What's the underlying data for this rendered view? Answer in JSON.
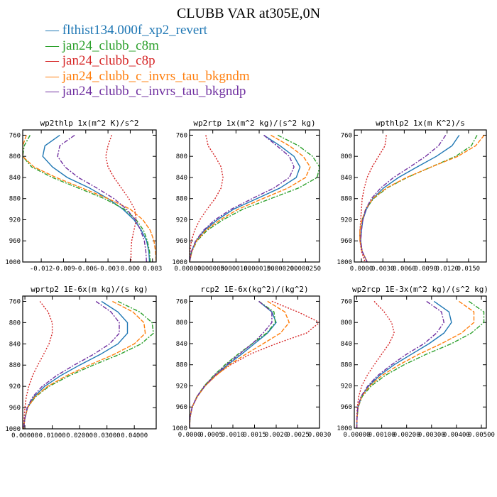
{
  "figure_title": "CLUBB VAR at305E,0N",
  "colors": [
    "#1f77b4",
    "#2ca02c",
    "#d62728",
    "#ff7f0e",
    "#7030a0"
  ],
  "legend": [
    {
      "label": "flthist134.000f_xp2_revert"
    },
    {
      "label": "jan24_clubb_c8m"
    },
    {
      "label": "jan24_clubb_c8p"
    },
    {
      "label": "jan24_clubb_c_invrs_tau_bkgndm"
    },
    {
      "label": "jan24_clubb_c_invrs_tau_bkgndp"
    }
  ],
  "chart_data": [
    {
      "type": "line",
      "title": "wp2thlp  1x(m^2 K)/s^2",
      "y": [
        760,
        780,
        800,
        820,
        840,
        860,
        880,
        900,
        920,
        940,
        960,
        980,
        1000
      ],
      "ylim": [
        1000,
        750
      ],
      "yticks": [
        760,
        800,
        840,
        880,
        920,
        960,
        1000
      ],
      "xlim": [
        -0.0145,
        0.0035
      ],
      "xticks": [
        -0.012,
        -0.009,
        -0.006,
        -0.003,
        0.0,
        0.003
      ],
      "xticklabels": [
        "-0.012",
        "-0.009",
        "-0.006",
        "-0.003",
        "0.000",
        "0.003"
      ],
      "series": [
        {
          "values": [
            -0.0095,
            -0.0115,
            -0.0118,
            -0.0105,
            -0.0085,
            -0.0055,
            -0.003,
            -0.001,
            0.0005,
            0.0015,
            0.0022,
            0.0025,
            0.0026
          ]
        },
        {
          "values": [
            -0.0135,
            -0.0143,
            -0.0145,
            -0.0133,
            -0.0105,
            -0.007,
            -0.0035,
            -0.0008,
            0.0008,
            0.0018,
            0.0023,
            0.0026,
            0.0027
          ]
        },
        {
          "values": [
            -0.0025,
            -0.003,
            -0.0033,
            -0.003,
            -0.0022,
            -0.0012,
            -0.0002,
            0.0006,
            0.0008,
            0.0005,
            0.0002,
            0.0001,
            0.0001
          ]
        },
        {
          "values": [
            -0.014,
            -0.0145,
            -0.0145,
            -0.013,
            -0.01,
            -0.0065,
            -0.003,
            0.0,
            0.0017,
            0.0027,
            0.0032,
            0.0034,
            0.0035
          ]
        },
        {
          "values": [
            -0.0075,
            -0.0095,
            -0.0098,
            -0.0088,
            -0.007,
            -0.0045,
            -0.0022,
            -0.0005,
            0.0007,
            0.0014,
            0.0019,
            0.0021,
            0.0022
          ]
        }
      ]
    },
    {
      "type": "line",
      "title": "wp2rtp  1x(m^2 kg)/(s^2 kg)",
      "y": [
        760,
        780,
        800,
        820,
        840,
        860,
        880,
        900,
        920,
        940,
        960,
        980,
        1000
      ],
      "ylim": [
        1000,
        750
      ],
      "yticks": [
        760,
        800,
        840,
        880,
        920,
        960,
        1000
      ],
      "xlim": [
        0,
        0.00028
      ],
      "xticks": [
        0,
        5e-05,
        0.0001,
        0.00015,
        0.0002,
        0.00025
      ],
      "xticklabels": [
        "0.000000",
        "0.000050",
        "0.000100",
        "0.000150",
        "0.000200",
        "0.000250"
      ],
      "series": [
        {
          "values": [
            0.00016,
            0.000195,
            0.000225,
            0.000238,
            0.00023,
            0.000195,
            0.000145,
            9.5e-05,
            6e-05,
            3.2e-05,
            1.4e-05,
            4e-06,
            0.0
          ]
        },
        {
          "values": [
            0.00019,
            0.000235,
            0.000265,
            0.00028,
            0.000275,
            0.000235,
            0.000175,
            0.000115,
            7.2e-05,
            3.8e-05,
            1.6e-05,
            5e-06,
            0.0
          ]
        },
        {
          "values": [
            3.5e-05,
            4e-05,
            5.5e-05,
            6.8e-05,
            7.2e-05,
            6.8e-05,
            5.5e-05,
            3.8e-05,
            2.2e-05,
            1.1e-05,
            4e-06,
            1e-06,
            0.0
          ]
        },
        {
          "values": [
            0.000175,
            0.000215,
            0.000245,
            0.00026,
            0.00025,
            0.000212,
            0.000158,
            0.000105,
            6.6e-05,
            3.5e-05,
            1.5e-05,
            5e-06,
            0.0
          ]
        },
        {
          "values": [
            0.00016,
            0.000188,
            0.000215,
            0.000225,
            0.000215,
            0.000182,
            0.000135,
            9e-05,
            5.5e-05,
            3e-05,
            1.3e-05,
            4e-06,
            0.0
          ]
        }
      ]
    },
    {
      "type": "line",
      "title": "wpthlp2  1x(m K^2)/s",
      "y": [
        760,
        780,
        800,
        820,
        840,
        860,
        880,
        900,
        920,
        940,
        960,
        980,
        1000
      ],
      "ylim": [
        1000,
        750
      ],
      "yticks": [
        760,
        800,
        840,
        880,
        920,
        960,
        1000
      ],
      "xlim": [
        -0.001,
        0.0175
      ],
      "xticks": [
        0,
        0.003,
        0.006,
        0.009,
        0.012,
        0.015
      ],
      "xticklabels": [
        "0.0000",
        "0.0030",
        "0.0060",
        "0.0090",
        "0.0120",
        "0.0150"
      ],
      "series": [
        {
          "values": [
            0.0137,
            0.0127,
            0.0105,
            0.0078,
            0.0052,
            0.0031,
            0.0016,
            0.0007,
            0.0002,
            0.0,
            -0.0001,
            0.0001,
            0.0008
          ]
        },
        {
          "values": [
            0.0162,
            0.0154,
            0.0132,
            0.0098,
            0.0064,
            0.0036,
            0.0017,
            0.0006,
            0.0001,
            -0.0002,
            -0.0002,
            0.0001,
            0.0008
          ]
        },
        {
          "values": [
            0.0035,
            0.0033,
            0.0024,
            0.0015,
            0.0008,
            0.0004,
            0.0001,
            0.0,
            -0.0001,
            -0.0002,
            -0.0002,
            0.0,
            0.0005
          ]
        },
        {
          "values": [
            0.0172,
            0.016,
            0.0135,
            0.0098,
            0.0063,
            0.0035,
            0.0016,
            0.0006,
            0.0001,
            -0.0002,
            -0.0002,
            0.0001,
            0.0008
          ]
        },
        {
          "values": [
            0.0118,
            0.0108,
            0.009,
            0.0068,
            0.0045,
            0.0027,
            0.0014,
            0.0006,
            0.0002,
            0.0,
            -0.0001,
            0.0001,
            0.0008
          ]
        }
      ]
    },
    {
      "type": "line",
      "title": "wprtp2  1E-6x(m kg)/(s kg)",
      "y": [
        760,
        780,
        800,
        820,
        840,
        860,
        880,
        900,
        920,
        940,
        960,
        980,
        1000
      ],
      "ylim": [
        1000,
        750
      ],
      "yticks": [
        760,
        800,
        840,
        880,
        920,
        960,
        1000
      ],
      "xlim": [
        -0.0008,
        0.048
      ],
      "xticks": [
        0,
        0.01,
        0.02,
        0.03,
        0.04
      ],
      "xticklabels": [
        "0.00000",
        "0.01000",
        "0.02000",
        "0.03000",
        "0.04000"
      ],
      "series": [
        {
          "values": [
            0.028,
            0.034,
            0.0375,
            0.0375,
            0.034,
            0.0275,
            0.02,
            0.013,
            0.0072,
            0.0033,
            0.001,
            0.0,
            -0.0005
          ]
        },
        {
          "values": [
            0.034,
            0.042,
            0.0465,
            0.047,
            0.0425,
            0.0345,
            0.025,
            0.0162,
            0.0088,
            0.0038,
            0.001,
            0.0,
            -0.0005
          ]
        },
        {
          "values": [
            0.0055,
            0.0085,
            0.01,
            0.01,
            0.0088,
            0.0068,
            0.0047,
            0.0028,
            0.0014,
            0.0005,
            0.0,
            -0.0003,
            -0.0005
          ]
        },
        {
          "values": [
            0.032,
            0.0395,
            0.0435,
            0.044,
            0.04,
            0.0325,
            0.0235,
            0.0152,
            0.0083,
            0.0036,
            0.001,
            0.0,
            -0.0005
          ]
        },
        {
          "values": [
            0.026,
            0.0315,
            0.0345,
            0.0345,
            0.031,
            0.025,
            0.018,
            0.0115,
            0.0063,
            0.0028,
            0.0008,
            0.0,
            -0.0005
          ]
        }
      ]
    },
    {
      "type": "line",
      "title": "rcp2  1E-6x(kg^2)/(kg^2)",
      "y": [
        760,
        780,
        800,
        820,
        840,
        860,
        880,
        900,
        920,
        940,
        960,
        980,
        1000
      ],
      "ylim": [
        1000,
        750
      ],
      "yticks": [
        760,
        800,
        840,
        880,
        920,
        960,
        1000
      ],
      "xlim": [
        0,
        0.003
      ],
      "xticks": [
        0,
        0.0005,
        0.001,
        0.0015,
        0.002,
        0.0025,
        0.003
      ],
      "xticklabels": [
        "0.0000",
        "0.0005",
        "0.0010",
        "0.0015",
        "0.0020",
        "0.0025",
        "0.0030"
      ],
      "series": [
        {
          "values": [
            0.0016,
            0.0019,
            0.002,
            0.0018,
            0.0015,
            0.0012,
            0.00088,
            0.0006,
            0.00036,
            0.00018,
            6e-05,
            1e-05,
            0.0
          ]
        },
        {
          "values": [
            0.0016,
            0.00195,
            0.00198,
            0.00178,
            0.00145,
            0.00112,
            0.00082,
            0.00056,
            0.00034,
            0.00017,
            6e-05,
            1e-05,
            0.0
          ]
        },
        {
          "values": [
            0.0019,
            0.0025,
            0.003,
            0.0027,
            0.002,
            0.0014,
            0.00095,
            0.0006,
            0.00035,
            0.00017,
            6e-05,
            1e-05,
            0.0
          ]
        },
        {
          "values": [
            0.0018,
            0.0022,
            0.0023,
            0.0021,
            0.0017,
            0.0013,
            0.00092,
            0.00062,
            0.00036,
            0.00018,
            6e-05,
            1e-05,
            0.0
          ]
        },
        {
          "values": [
            0.0016,
            0.0019,
            0.0019,
            0.0017,
            0.00145,
            0.00115,
            0.00085,
            0.00058,
            0.00035,
            0.00017,
            6e-05,
            1e-05,
            0.0
          ]
        }
      ]
    },
    {
      "type": "line",
      "title": "wp2rcp  1E-3x(m^2 kg)/(s^2 kg)",
      "y": [
        760,
        780,
        800,
        820,
        840,
        860,
        880,
        900,
        920,
        940,
        960,
        980,
        1000
      ],
      "ylim": [
        1000,
        750
      ],
      "yticks": [
        760,
        800,
        840,
        880,
        920,
        960,
        1000
      ],
      "xlim": [
        -0.0001,
        0.0052
      ],
      "xticks": [
        0,
        0.001,
        0.002,
        0.003,
        0.004,
        0.005
      ],
      "xticklabels": [
        "0.00000",
        "0.00100",
        "0.00200",
        "0.00300",
        "0.00400",
        "0.00500"
      ],
      "series": [
        {
          "values": [
            0.0031,
            0.0037,
            0.0038,
            0.0035,
            0.0029,
            0.0022,
            0.0015,
            0.00092,
            0.00048,
            0.00019,
            5e-05,
            1e-05,
            0.0
          ]
        },
        {
          "values": [
            0.0045,
            0.0051,
            0.0051,
            0.0046,
            0.0038,
            0.0028,
            0.0019,
            0.00115,
            0.00058,
            0.00022,
            6e-05,
            1e-05,
            0.0
          ]
        },
        {
          "values": [
            0.0007,
            0.0011,
            0.0014,
            0.0015,
            0.0013,
            0.001,
            0.0007,
            0.00042,
            0.0002,
            8e-05,
            2e-05,
            0.0,
            0.0
          ]
        },
        {
          "values": [
            0.0041,
            0.0047,
            0.0047,
            0.0042,
            0.0034,
            0.0025,
            0.0017,
            0.00102,
            0.00052,
            0.0002,
            5e-05,
            1e-05,
            0.0
          ]
        },
        {
          "values": [
            0.0028,
            0.0034,
            0.0035,
            0.0032,
            0.0027,
            0.002,
            0.0014,
            0.00085,
            0.00044,
            0.00017,
            4e-05,
            1e-05,
            0.0
          ]
        }
      ]
    }
  ]
}
